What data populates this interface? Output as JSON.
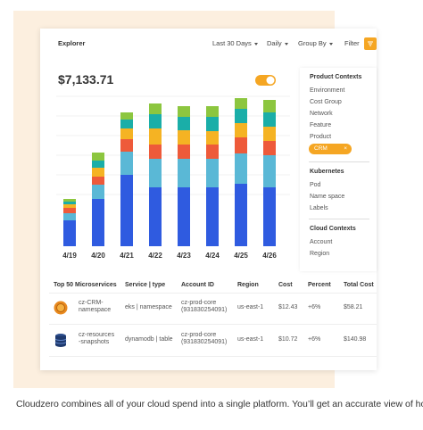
{
  "header": {
    "title": "Explorer",
    "range": "Last 30 Days",
    "interval": "Daily",
    "group_by": "Group By",
    "filter": "Filter"
  },
  "total": "$7,133.71",
  "chart_data": {
    "type": "bar",
    "stacked": true,
    "categories": [
      "4/19",
      "4/20",
      "4/21",
      "4/22",
      "4/23",
      "4/24",
      "4/25",
      "4/26"
    ],
    "ylim": [
      0,
      170
    ],
    "series": [
      {
        "color": "#2f5be0",
        "values": [
          29,
          53,
          80,
          66,
          66,
          66,
          70,
          66
        ]
      },
      {
        "color": "#5ab8d6",
        "values": [
          8,
          16,
          26,
          32,
          32,
          32,
          34,
          36
        ]
      },
      {
        "color": "#ee5a3a",
        "values": [
          6,
          9,
          14,
          16,
          16,
          16,
          18,
          16
        ]
      },
      {
        "color": "#f5b323",
        "values": [
          4,
          10,
          12,
          18,
          16,
          15,
          16,
          16
        ]
      },
      {
        "color": "#1aaea8",
        "values": [
          3,
          8,
          10,
          16,
          15,
          16,
          16,
          16
        ]
      },
      {
        "color": "#8cc63f",
        "values": [
          3,
          9,
          8,
          12,
          12,
          12,
          12,
          14
        ]
      }
    ]
  },
  "sidebar": {
    "sections": [
      {
        "title": "Product Contexts",
        "items": [
          "Environment",
          "Cost Group",
          "Network",
          "Feature",
          "Product"
        ],
        "active": "CRM"
      },
      {
        "title": "Kubernetes",
        "items": [
          "Pod",
          "Name space",
          "Labels"
        ]
      },
      {
        "title": "Cloud Contexts",
        "items": [
          "Account",
          "Region"
        ]
      }
    ]
  },
  "table": {
    "columns": [
      "Top 50 Microservices",
      "Service | type",
      "Account ID",
      "Region",
      "Cost",
      "Percent",
      "Total Cost"
    ],
    "rows": [
      [
        [
          "cz-CRM-",
          "namespace"
        ],
        "eks | namespace",
        [
          "cz-prod-core",
          "(931830254091)"
        ],
        "us-east-1",
        "$12.43",
        "+6%",
        "$58.21"
      ],
      [
        [
          "cz-resources",
          "-snapshots"
        ],
        "dynamodb | table",
        [
          "cz-prod-core",
          "(931830254091)"
        ],
        "us-east-1",
        "$10.72",
        "+6%",
        "$140.98"
      ]
    ]
  },
  "footer_text": "Cloudzero combines all of your cloud spend into a single platform. You’ll get an accurate view of how much"
}
